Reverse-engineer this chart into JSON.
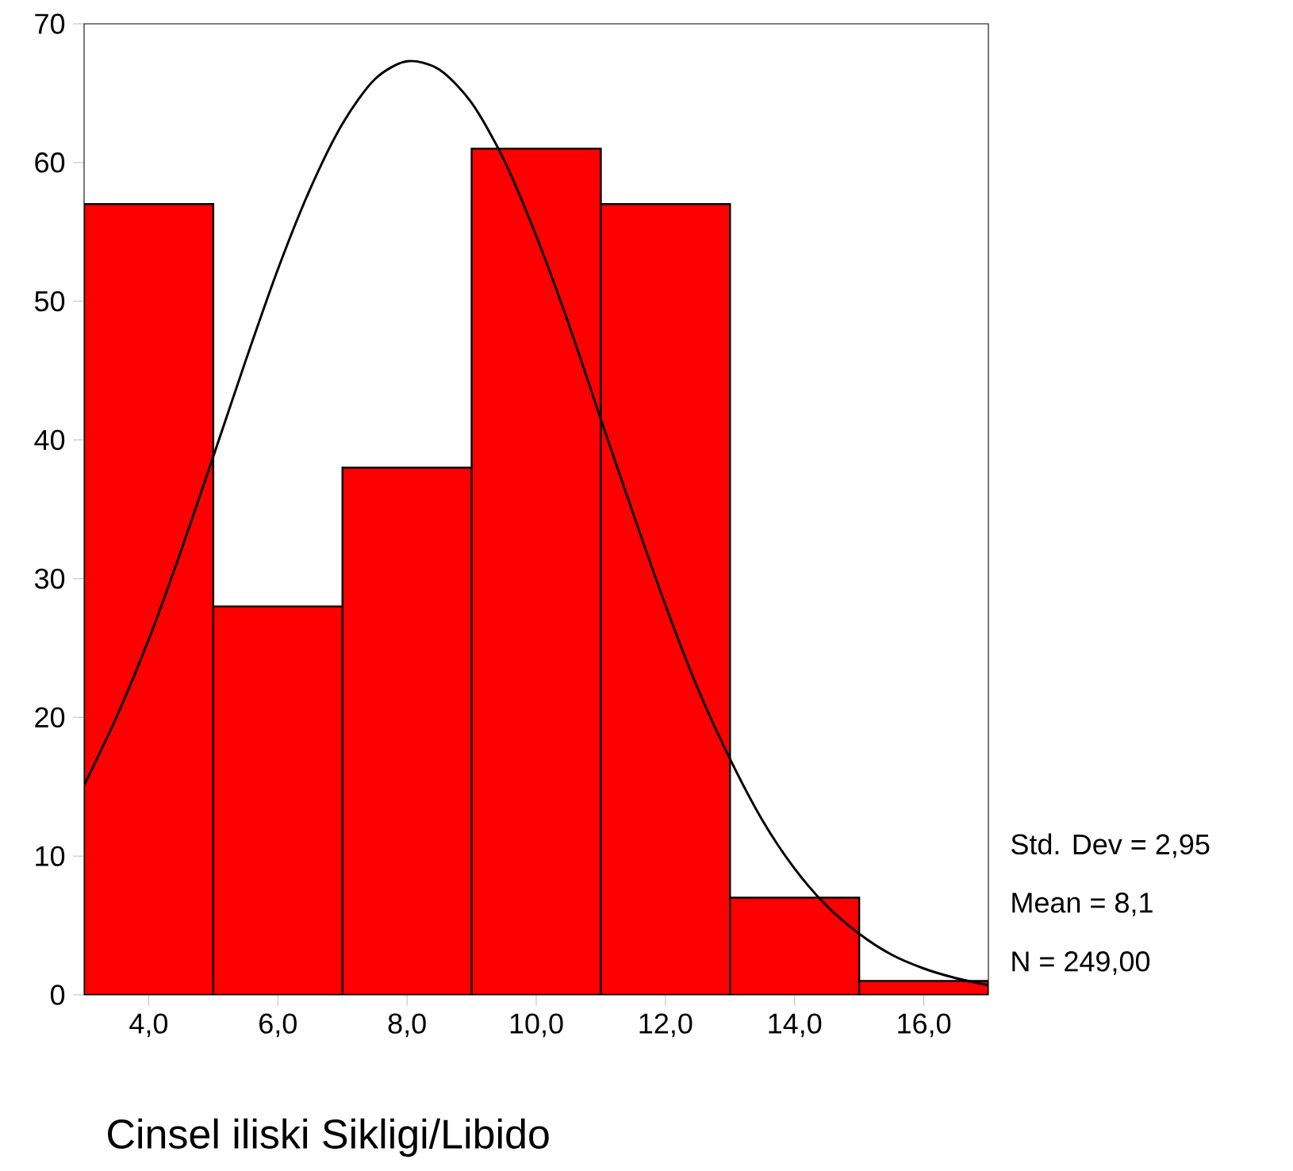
{
  "chart_data": {
    "type": "histogram",
    "xlabel": "Cinsel iliski Sikligi/Libido",
    "bins": [
      3,
      5,
      7,
      9,
      11,
      13,
      15,
      17
    ],
    "values": [
      57,
      28,
      38,
      61,
      57,
      7,
      1
    ],
    "color": "#ff0000",
    "series": [
      {
        "type": "line",
        "color": "#000000",
        "x": [
          3,
          3.5,
          4,
          4.5,
          5,
          5.5,
          6,
          6.5,
          7,
          7.5,
          8,
          8.5,
          9,
          9.5,
          10,
          10.5,
          11,
          11.5,
          12,
          12.5,
          13,
          13.5,
          14,
          14.5,
          15,
          15.5,
          16,
          16.5,
          17
        ],
        "values": [
          15.1,
          20.0,
          25.6,
          32.0,
          38.8,
          45.7,
          52.3,
          58.1,
          62.8,
          66.0,
          67.3,
          66.7,
          64.3,
          60.2,
          54.7,
          48.4,
          41.5,
          34.7,
          28.1,
          22.1,
          17.0,
          12.6,
          9.1,
          6.4,
          4.4,
          2.9,
          1.9,
          1.2,
          0.7
        ]
      }
    ],
    "xlim": [
      3,
      17
    ],
    "ylim": [
      0,
      70
    ],
    "xticks": [
      {
        "value": 4,
        "label": "4,0"
      },
      {
        "value": 6,
        "label": "6,0"
      },
      {
        "value": 8,
        "label": "8,0"
      },
      {
        "value": 10,
        "label": "10,0"
      },
      {
        "value": 12,
        "label": "12,0"
      },
      {
        "value": 14,
        "label": "14,0"
      },
      {
        "value": 16,
        "label": "16,0"
      }
    ],
    "yticks": [
      0,
      10,
      20,
      30,
      40,
      50,
      60,
      70
    ],
    "grid": false,
    "marker": "none",
    "line_style": "solid",
    "annotations": [
      "Std. Dev = 2,95",
      "Mean = 8,1",
      "N = 249,00"
    ]
  }
}
